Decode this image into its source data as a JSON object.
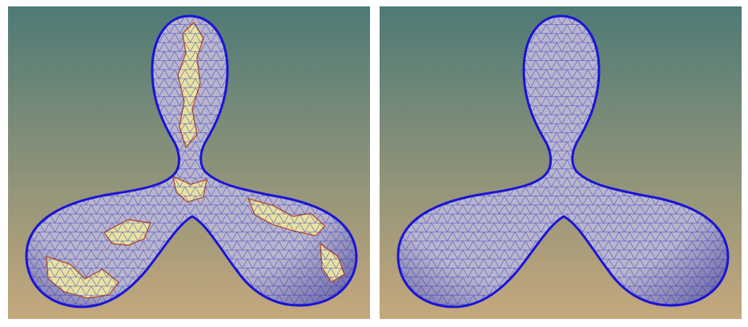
{
  "figure": {
    "panels": [
      {
        "id": "left",
        "shape": "three-lobed-propeller-surface",
        "mesh": "triangulated",
        "has_defect_patches": true
      },
      {
        "id": "right",
        "shape": "three-lobed-propeller-surface",
        "mesh": "triangulated",
        "has_defect_patches": false
      }
    ],
    "colors": {
      "background_top": "#4e7a76",
      "background_bottom": "#c5a87c",
      "surface_fill": "#b9b6cc",
      "surface_shade": "#6f6aa6",
      "wire": "#2f2fc8",
      "outline": "#1a14d6",
      "defect_fill": "#e8e3a0",
      "defect_edge": "#b8502a"
    }
  }
}
